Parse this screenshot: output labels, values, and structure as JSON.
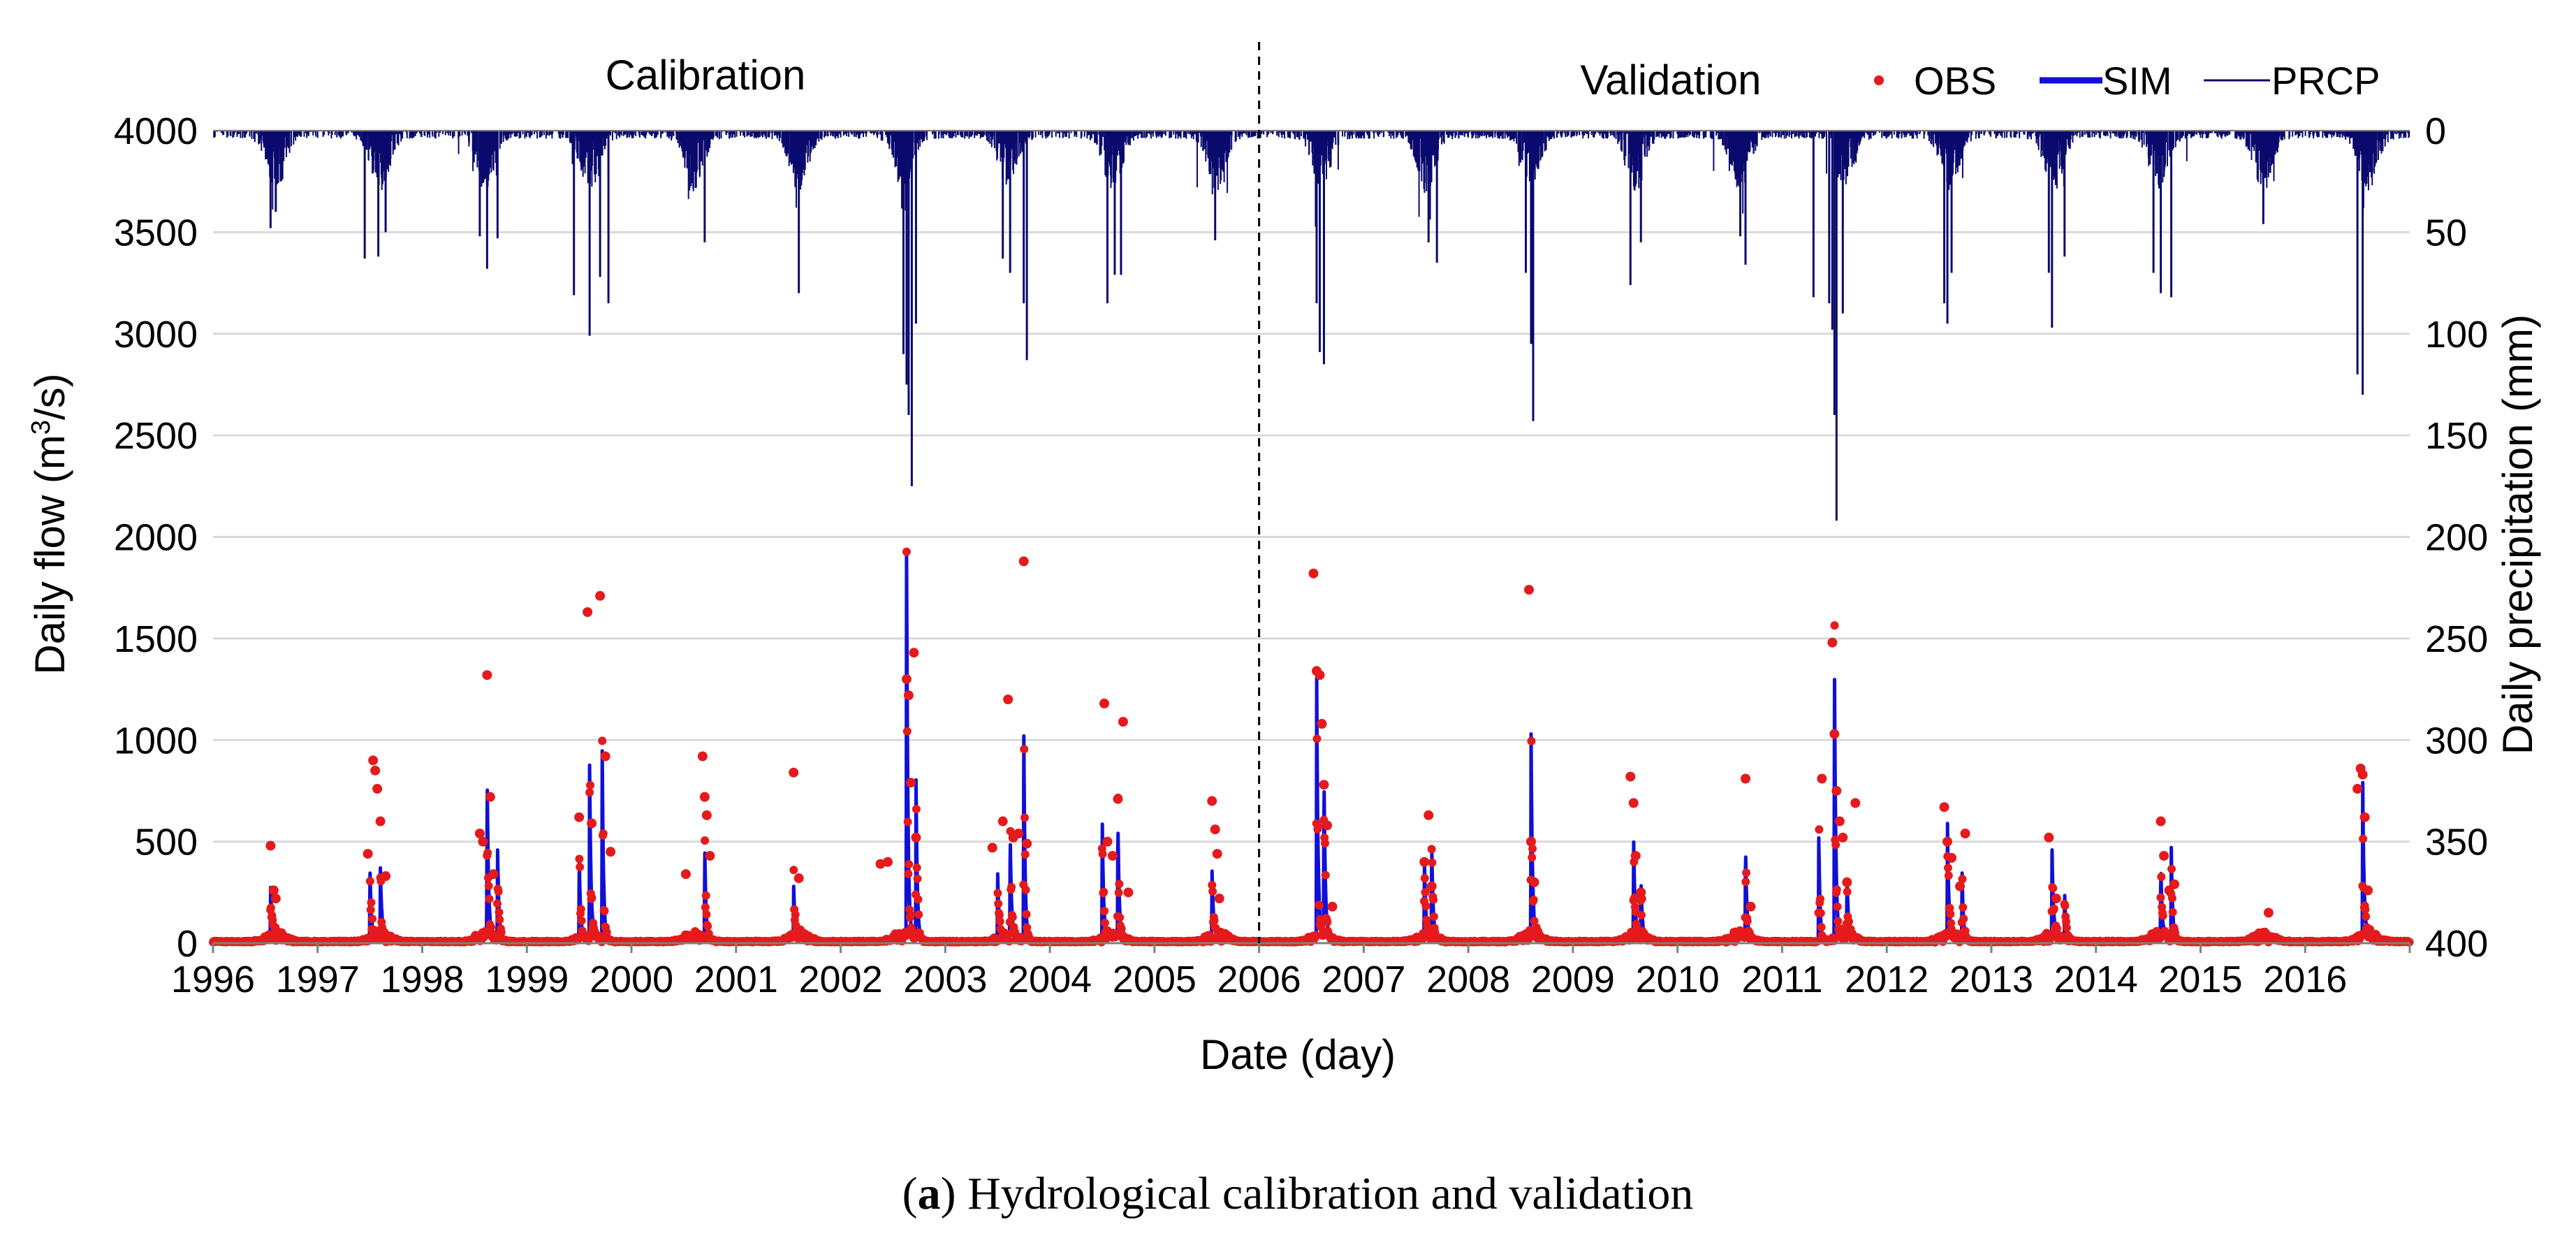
{
  "chart_data": {
    "type": "line",
    "xlabel": "Date (day)",
    "ylabel_left": "Daily flow (m",
    "ylabel_left_sup": "3",
    "ylabel_left_end": "/s)",
    "ylabel_right": "Daily precipitation (mm)",
    "x_ticks": [
      "1996",
      "1997",
      "1998",
      "1999",
      "2000",
      "2001",
      "2002",
      "2003",
      "2004",
      "2005",
      "2006",
      "2007",
      "2008",
      "2009",
      "2010",
      "2011",
      "2012",
      "2013",
      "2014",
      "2015",
      "2016"
    ],
    "xlim": [
      1996,
      2017
    ],
    "y_left_ticks": [
      0,
      500,
      1000,
      1500,
      2000,
      2500,
      3000,
      3500,
      4000
    ],
    "y_left_lim": [
      0,
      4000
    ],
    "y_right_ticks": [
      0,
      50,
      100,
      150,
      200,
      250,
      300,
      350,
      400
    ],
    "y_right_lim": [
      0,
      400
    ],
    "y_right_inverted": true,
    "grid": true,
    "legend_position": "top-right",
    "period_labels": {
      "calibration": "Calibration",
      "validation": "Validation"
    },
    "split_year": 2006,
    "caption_bold": "a",
    "caption_rest": ") Hydrological calibration and validation",
    "series": [
      {
        "name": "OBS",
        "style": "points",
        "color": "#e41a1c",
        "points": [
          [
            1996.55,
            480
          ],
          [
            1996.58,
            260
          ],
          [
            1996.6,
            220
          ],
          [
            1997.48,
            440
          ],
          [
            1997.53,
            900
          ],
          [
            1997.55,
            850
          ],
          [
            1997.57,
            760
          ],
          [
            1997.6,
            600
          ],
          [
            1997.65,
            330
          ],
          [
            1998.55,
            540
          ],
          [
            1998.58,
            500
          ],
          [
            1998.62,
            1320
          ],
          [
            1998.65,
            720
          ],
          [
            1998.68,
            340
          ],
          [
            1999.5,
            620
          ],
          [
            1999.58,
            1630
          ],
          [
            1999.62,
            590
          ],
          [
            1999.7,
            1710
          ],
          [
            1999.75,
            920
          ],
          [
            1999.8,
            450
          ],
          [
            2000.52,
            340
          ],
          [
            2000.68,
            920
          ],
          [
            2000.7,
            720
          ],
          [
            2000.72,
            630
          ],
          [
            2000.75,
            430
          ],
          [
            2001.55,
            840
          ],
          [
            2001.6,
            320
          ],
          [
            2002.38,
            390
          ],
          [
            2002.45,
            400
          ],
          [
            2002.63,
            1300
          ],
          [
            2002.65,
            1220
          ],
          [
            2002.67,
            790
          ],
          [
            2002.7,
            1430
          ],
          [
            2002.72,
            520
          ],
          [
            2003.45,
            470
          ],
          [
            2003.55,
            600
          ],
          [
            2003.6,
            1200
          ],
          [
            2003.65,
            520
          ],
          [
            2003.7,
            540
          ],
          [
            2003.75,
            1880
          ],
          [
            2003.78,
            490
          ],
          [
            2004.52,
            1180
          ],
          [
            2004.55,
            500
          ],
          [
            2004.6,
            430
          ],
          [
            2004.65,
            710
          ],
          [
            2004.7,
            1090
          ],
          [
            2004.75,
            250
          ],
          [
            2005.55,
            700
          ],
          [
            2005.58,
            560
          ],
          [
            2005.6,
            440
          ],
          [
            2005.62,
            220
          ],
          [
            2006.52,
            1820
          ],
          [
            2006.55,
            1340
          ],
          [
            2006.58,
            1320
          ],
          [
            2006.6,
            1080
          ],
          [
            2006.62,
            780
          ],
          [
            2006.65,
            580
          ],
          [
            2006.7,
            180
          ],
          [
            2007.58,
            400
          ],
          [
            2007.62,
            630
          ],
          [
            2007.65,
            280
          ],
          [
            2008.58,
            1740
          ],
          [
            2008.6,
            500
          ],
          [
            2008.63,
            300
          ],
          [
            2009.55,
            820
          ],
          [
            2009.58,
            690
          ],
          [
            2009.6,
            430
          ],
          [
            2009.65,
            250
          ],
          [
            2010.65,
            810
          ],
          [
            2010.7,
            180
          ],
          [
            2011.38,
            810
          ],
          [
            2011.48,
            1480
          ],
          [
            2011.5,
            1030
          ],
          [
            2011.52,
            750
          ],
          [
            2011.55,
            600
          ],
          [
            2011.58,
            520
          ],
          [
            2011.62,
            300
          ],
          [
            2011.7,
            690
          ],
          [
            2012.55,
            670
          ],
          [
            2012.58,
            500
          ],
          [
            2012.62,
            420
          ],
          [
            2012.7,
            280
          ],
          [
            2012.75,
            540
          ],
          [
            2013.55,
            520
          ],
          [
            2013.62,
            220
          ],
          [
            2014.62,
            600
          ],
          [
            2014.65,
            430
          ],
          [
            2014.7,
            260
          ],
          [
            2014.75,
            290
          ],
          [
            2015.65,
            150
          ],
          [
            2016.5,
            760
          ],
          [
            2016.53,
            860
          ],
          [
            2016.55,
            830
          ],
          [
            2016.57,
            620
          ],
          [
            2016.6,
            260
          ]
        ],
        "baseline_note": ""
      },
      {
        "name": "SIM",
        "style": "line",
        "color": "#1010d8",
        "peaks": [
          [
            1996.55,
            250
          ],
          [
            1997.5,
            350
          ],
          [
            1997.6,
            330
          ],
          [
            1998.62,
            840
          ],
          [
            1998.72,
            460
          ],
          [
            1999.5,
            430
          ],
          [
            1999.6,
            830
          ],
          [
            1999.72,
            970
          ],
          [
            2000.7,
            470
          ],
          [
            2001.55,
            260
          ],
          [
            2002.63,
            1890
          ],
          [
            2002.72,
            820
          ],
          [
            2003.5,
            350
          ],
          [
            2003.62,
            520
          ],
          [
            2003.75,
            1060
          ],
          [
            2004.5,
            620
          ],
          [
            2004.65,
            590
          ],
          [
            2005.55,
            330
          ],
          [
            2006.55,
            1340
          ],
          [
            2006.62,
            820
          ],
          [
            2007.58,
            380
          ],
          [
            2007.65,
            470
          ],
          [
            2008.6,
            990
          ],
          [
            2009.58,
            490
          ],
          [
            2009.65,
            280
          ],
          [
            2010.65,
            460
          ],
          [
            2011.35,
            540
          ],
          [
            2011.5,
            1420
          ],
          [
            2011.62,
            300
          ],
          [
            2012.58,
            580
          ],
          [
            2012.72,
            340
          ],
          [
            2013.58,
            440
          ],
          [
            2013.7,
            230
          ],
          [
            2014.62,
            350
          ],
          [
            2014.72,
            470
          ],
          [
            2016.55,
            790
          ]
        ]
      },
      {
        "name": "PRCP",
        "style": "bars-from-top",
        "color": "#0a0a6e",
        "peaks": [
          [
            1996.55,
            48
          ],
          [
            1996.6,
            40
          ],
          [
            1997.45,
            63
          ],
          [
            1997.58,
            62
          ],
          [
            1997.65,
            50
          ],
          [
            1998.55,
            52
          ],
          [
            1998.62,
            68
          ],
          [
            1998.72,
            53
          ],
          [
            1999.45,
            81
          ],
          [
            1999.6,
            101
          ],
          [
            1999.7,
            72
          ],
          [
            1999.78,
            85
          ],
          [
            2000.7,
            55
          ],
          [
            2001.6,
            80
          ],
          [
            2002.6,
            110
          ],
          [
            2002.63,
            125
          ],
          [
            2002.65,
            140
          ],
          [
            2002.68,
            175
          ],
          [
            2002.72,
            95
          ],
          [
            2003.55,
            63
          ],
          [
            2003.62,
            70
          ],
          [
            2003.75,
            85
          ],
          [
            2003.78,
            113
          ],
          [
            2004.55,
            85
          ],
          [
            2004.62,
            71
          ],
          [
            2004.68,
            71
          ],
          [
            2005.58,
            54
          ],
          [
            2006.55,
            85
          ],
          [
            2006.58,
            109
          ],
          [
            2006.62,
            115
          ],
          [
            2007.62,
            55
          ],
          [
            2007.7,
            65
          ],
          [
            2008.55,
            70
          ],
          [
            2008.6,
            105
          ],
          [
            2008.62,
            143
          ],
          [
            2009.55,
            76
          ],
          [
            2009.65,
            55
          ],
          [
            2010.6,
            52
          ],
          [
            2010.65,
            66
          ],
          [
            2011.3,
            82
          ],
          [
            2011.45,
            85
          ],
          [
            2011.48,
            98
          ],
          [
            2011.5,
            140
          ],
          [
            2011.52,
            192
          ],
          [
            2011.58,
            90
          ],
          [
            2012.55,
            85
          ],
          [
            2012.58,
            95
          ],
          [
            2012.62,
            70
          ],
          [
            2013.55,
            70
          ],
          [
            2013.58,
            97
          ],
          [
            2013.7,
            62
          ],
          [
            2014.55,
            70
          ],
          [
            2014.62,
            80
          ],
          [
            2014.72,
            82
          ],
          [
            2015.6,
            46
          ],
          [
            2016.5,
            120
          ],
          [
            2016.55,
            130
          ]
        ]
      }
    ]
  }
}
